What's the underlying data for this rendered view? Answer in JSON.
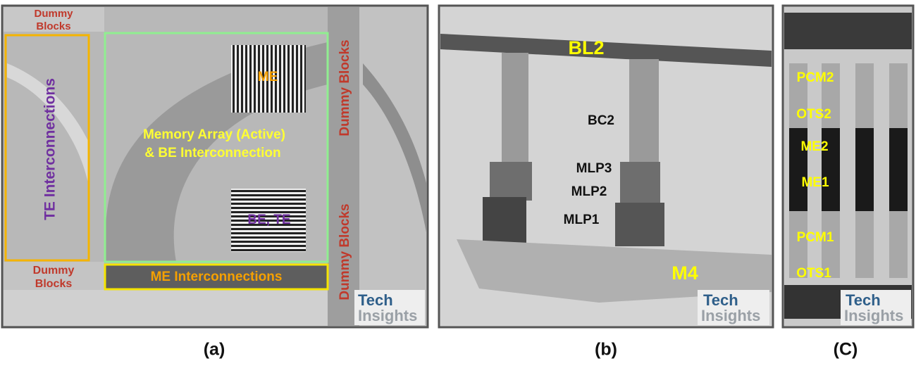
{
  "panels": [
    {
      "caption": "(a)",
      "watermark": [
        "Tech",
        "Insights"
      ],
      "labels": {
        "dummy_top_left": [
          "Dummy",
          "Blocks"
        ],
        "te": "TE Interconnections",
        "array": [
          "Memory  Array (Active)",
          "& BE Interconnection"
        ],
        "me": "ME",
        "be_te": "BE, TE",
        "dummy_right_top": "Dummy Blocks",
        "dummy_right_bottom": "Dummy Blocks",
        "dummy_bottom_left": [
          "Dummy",
          "Blocks"
        ],
        "me_inter": "ME Interconnections"
      }
    },
    {
      "caption": "(b)",
      "watermark": [
        "Tech",
        "Insights"
      ],
      "labels": {
        "bl2": "BL2",
        "bc2": "BC2",
        "mlp3": "MLP3",
        "mlp2": "MLP2",
        "mlp1": "MLP1",
        "m4": "M4"
      }
    },
    {
      "caption": "(C)",
      "watermark": [
        "Tech",
        "Insights"
      ],
      "labels": {
        "pcm2": "PCM2",
        "ots2": "OTS2",
        "me2": "ME2",
        "me1": "ME1",
        "pcm1": "PCM1",
        "ots1": "OTS1"
      }
    }
  ]
}
